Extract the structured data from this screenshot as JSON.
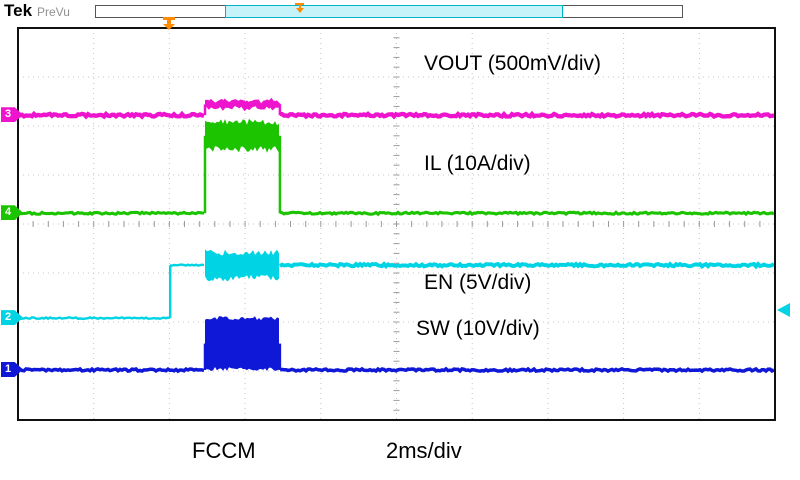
{
  "header": {
    "brand": "Tek",
    "status": "PreVu"
  },
  "acquisition_bar": {
    "window_fill": "#c6f3fa",
    "window_border": "#00b4c8"
  },
  "chart_data": {
    "type": "line",
    "instrument": "oscilloscope-waveform-capture",
    "divisions": {
      "x": 10,
      "y": 8
    },
    "x_total_ms": 20,
    "timebase": "2ms/div",
    "trigger_time_ms": 4.0,
    "trigger_color": "#ff8c00",
    "burst_window_ms": [
      4.94,
      6.92
    ],
    "labels": {
      "vout": "VOUT (500mV/div)",
      "il": "IL (10A/div)",
      "en": "EN (5V/div)",
      "sw": "SW (10V/div)",
      "mode": "FCCM",
      "timebase": "2ms/div"
    },
    "series": [
      {
        "name": "VOUT",
        "channel": "3",
        "scale": "500mV/div",
        "color": "#ee14ce",
        "segments": [
          {
            "t0": 0,
            "t1": 4.94,
            "level_div": 1.78,
            "halfband_div": 0.055
          },
          {
            "t0": 4.94,
            "t1": 6.92,
            "level_div": 1.56,
            "halfband_div": 0.08
          },
          {
            "t0": 6.92,
            "t1": 20,
            "level_div": 1.78,
            "halfband_div": 0.055
          }
        ]
      },
      {
        "name": "IL",
        "channel": "4",
        "scale": "10A/div",
        "color": "#1cc400",
        "segments": [
          {
            "t0": 0,
            "t1": 4.94,
            "level_div": 3.78,
            "halfband_div": 0.04
          },
          {
            "t0": 4.94,
            "t1": 6.92,
            "level_div": 2.2,
            "halfband_div": 0.35
          },
          {
            "t0": 6.92,
            "t1": 20,
            "level_div": 3.78,
            "halfband_div": 0.04
          }
        ]
      },
      {
        "name": "EN",
        "channel": "2",
        "scale": "5V/div",
        "color": "#00d4e4",
        "segments": [
          {
            "t0": 0,
            "t1": 4.02,
            "level_div": 5.92,
            "halfband_div": 0.03
          },
          {
            "t0": 4.02,
            "t1": 4.94,
            "level_div": 4.84,
            "halfband_div": 0.03
          },
          {
            "t0": 4.94,
            "t1": 6.92,
            "level_div": 4.84,
            "halfband_div": 0.33
          },
          {
            "t0": 6.92,
            "t1": 20,
            "level_div": 4.84,
            "halfband_div": 0.05
          }
        ]
      },
      {
        "name": "SW",
        "channel": "1",
        "scale": "10V/div",
        "color": "#1018d8",
        "segments": [
          {
            "t0": 0,
            "t1": 4.94,
            "level_div": 6.98,
            "halfband_div": 0.045
          },
          {
            "t0": 4.94,
            "t1": 6.92,
            "level_div": 6.44,
            "halfband_div": 0.56,
            "dense_fill": true
          },
          {
            "t0": 6.92,
            "t1": 20,
            "level_div": 6.98,
            "halfband_div": 0.045
          }
        ]
      }
    ]
  }
}
